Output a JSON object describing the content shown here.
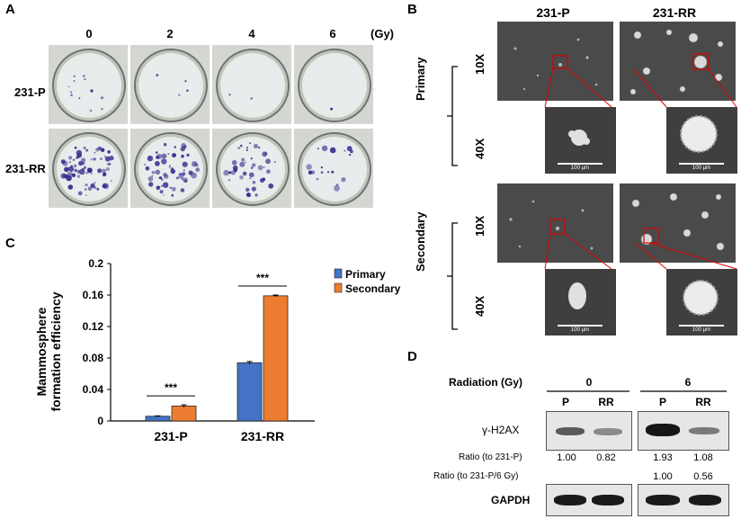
{
  "panel_a": {
    "letter": "A",
    "doses": [
      "0",
      "2",
      "4",
      "6"
    ],
    "unit": "(Gy)",
    "rows": [
      "231-P",
      "231-RR"
    ]
  },
  "panel_b": {
    "letter": "B",
    "columns": [
      "231-P",
      "231-RR"
    ],
    "groups": [
      "Primary",
      "Secondary"
    ],
    "magnifications": [
      "10X",
      "40X"
    ],
    "scale_label": "100 µm"
  },
  "panel_c": {
    "letter": "C",
    "ylabel_line1": "Mammosphere",
    "ylabel_line2": "formation efficiency",
    "yticks": [
      "0",
      "0.04",
      "0.08",
      "0.12",
      "0.16",
      "0.2"
    ],
    "significance": [
      "***",
      "***"
    ]
  },
  "chart_data": {
    "type": "bar",
    "categories": [
      "231-P",
      "231-RR"
    ],
    "series": [
      {
        "name": "Primary",
        "values": [
          0.006,
          0.074
        ],
        "errors": [
          0.0005,
          0.0015
        ],
        "color": "#4472c4"
      },
      {
        "name": "Secondary",
        "values": [
          0.019,
          0.159
        ],
        "errors": [
          0.0015,
          0.001
        ],
        "color": "#ed7d31"
      }
    ],
    "xlabel": "",
    "ylabel": "Mammosphere formation efficiency",
    "ylim": [
      0,
      0.2
    ],
    "yticks": [
      0,
      0.04,
      0.08,
      0.12,
      0.16,
      0.2
    ],
    "annotations": [
      "***",
      "***"
    ],
    "legend_position": "top-right",
    "grid": false
  },
  "panel_d": {
    "letter": "D",
    "radiation_label": "Radiation (Gy)",
    "doses": [
      "0",
      "6"
    ],
    "lanes": [
      "P",
      "RR",
      "P",
      "RR"
    ],
    "protein1": "γ-H2AX",
    "ratio1_label": "Ratio (to 231-P)",
    "ratio1_values": [
      "1.00",
      "0.82",
      "1.93",
      "1.08"
    ],
    "ratio2_label": "Ratio (to 231-P/6 Gy)",
    "ratio2_values": [
      "1.00",
      "0.56"
    ],
    "protein2": "GAPDH"
  }
}
